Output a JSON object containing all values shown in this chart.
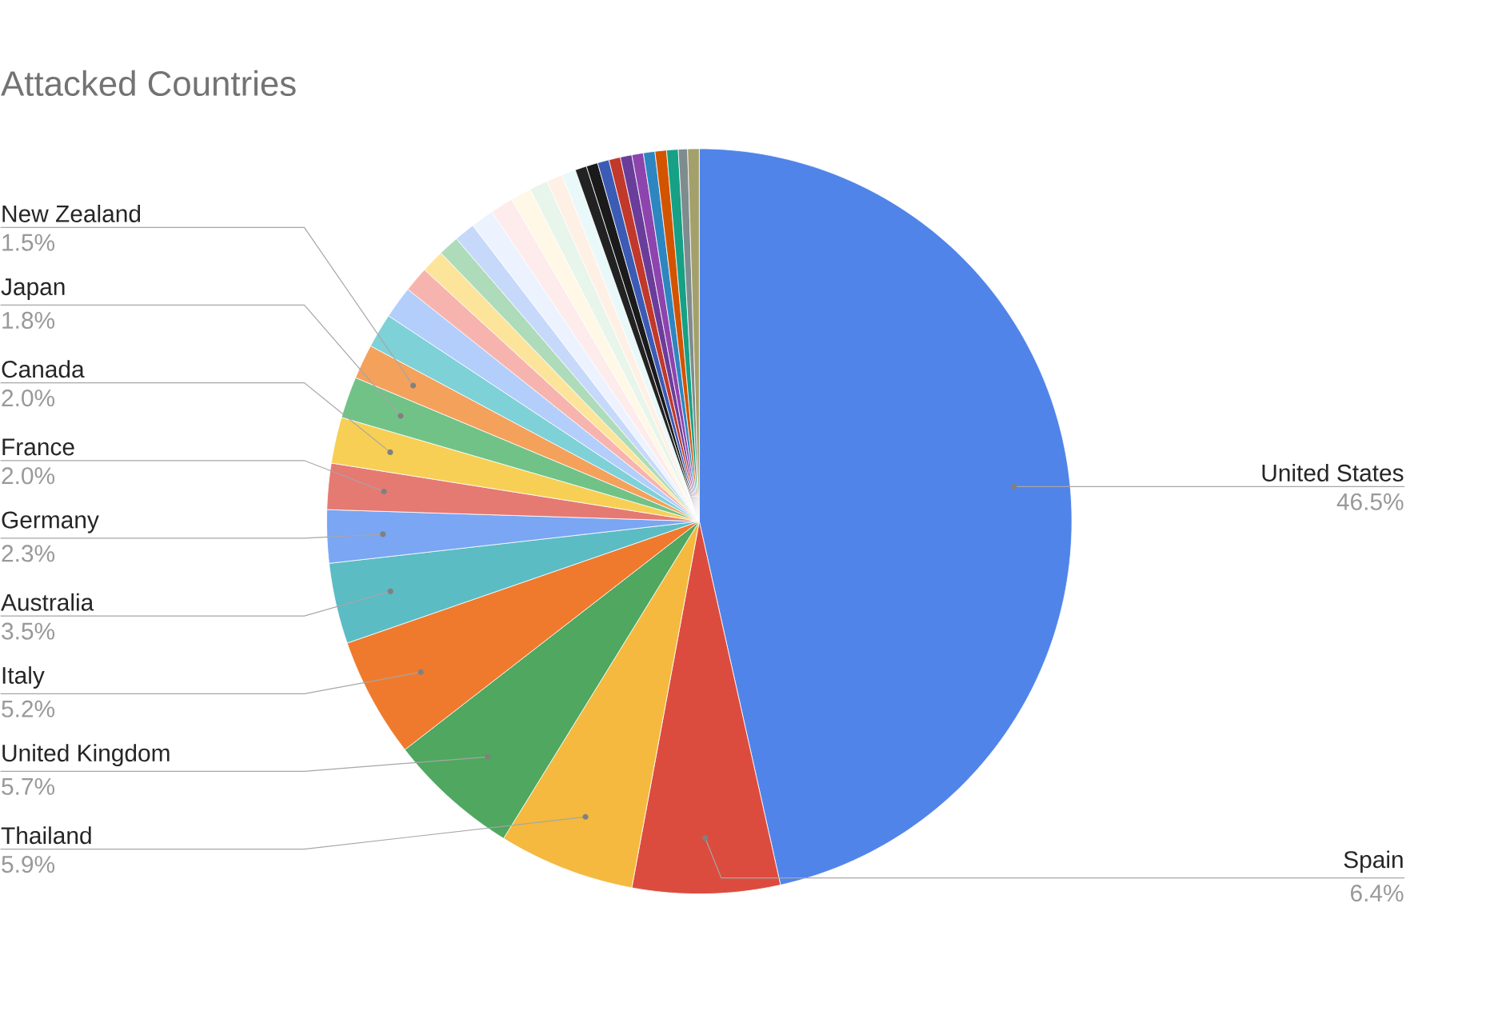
{
  "chart_data": {
    "type": "pie",
    "title": "Attacked Countries",
    "categories": [
      "United States",
      "Spain",
      "Thailand",
      "United Kingdom",
      "Italy",
      "Australia",
      "Germany",
      "France",
      "Canada",
      "Japan",
      "New Zealand",
      null,
      null,
      null,
      null,
      null,
      null,
      null,
      null,
      null,
      null,
      null,
      null,
      null,
      null,
      null,
      null,
      null,
      null,
      null,
      null,
      null,
      null,
      null
    ],
    "values": [
      46.5,
      6.4,
      5.9,
      5.7,
      5.2,
      3.5,
      2.3,
      2.0,
      2.0,
      1.8,
      1.5,
      1.5,
      1.4,
      1.1,
      1.0,
      0.9,
      0.9,
      1.0,
      1.0,
      0.9,
      0.8,
      0.7,
      0.6,
      0.5,
      0.5,
      0.5,
      0.5,
      0.5,
      0.5,
      0.5,
      0.5,
      0.5,
      0.4,
      0.5
    ],
    "value_labels": [
      "46.5%",
      "6.4%",
      "5.9%",
      "5.7%",
      "5.2%",
      "3.5%",
      "2.3%",
      "2.0%",
      "2.0%",
      "1.8%",
      "1.5%",
      null,
      null,
      null,
      null,
      null,
      null,
      null,
      null,
      null,
      null,
      null,
      null,
      null,
      null,
      null,
      null,
      null,
      null,
      null,
      null,
      null,
      null,
      null
    ],
    "colors": [
      "#5084e9",
      "#db4c3f",
      "#f4b93e",
      "#4fa760",
      "#ef7a2d",
      "#5bbcc4",
      "#7aa6f3",
      "#e57a73",
      "#f7cf55",
      "#71c287",
      "#f4a15c",
      "#7ed1d7",
      "#b3cefb",
      "#f7b4ae",
      "#fde49b",
      "#aedcba",
      "#c6d9fb",
      "#ecf3fe",
      "#fdeceb",
      "#fff8e6",
      "#e7f5eb",
      "#fff0e6",
      "#e9f8f9",
      "#222222",
      "#1a1a1a",
      "#3b5bb5",
      "#c0392b",
      "#6a3d9a",
      "#8e44ad",
      "#2e86c1",
      "#d35400",
      "#16a085",
      "#7f8c8d",
      "#a3a06b"
    ]
  }
}
